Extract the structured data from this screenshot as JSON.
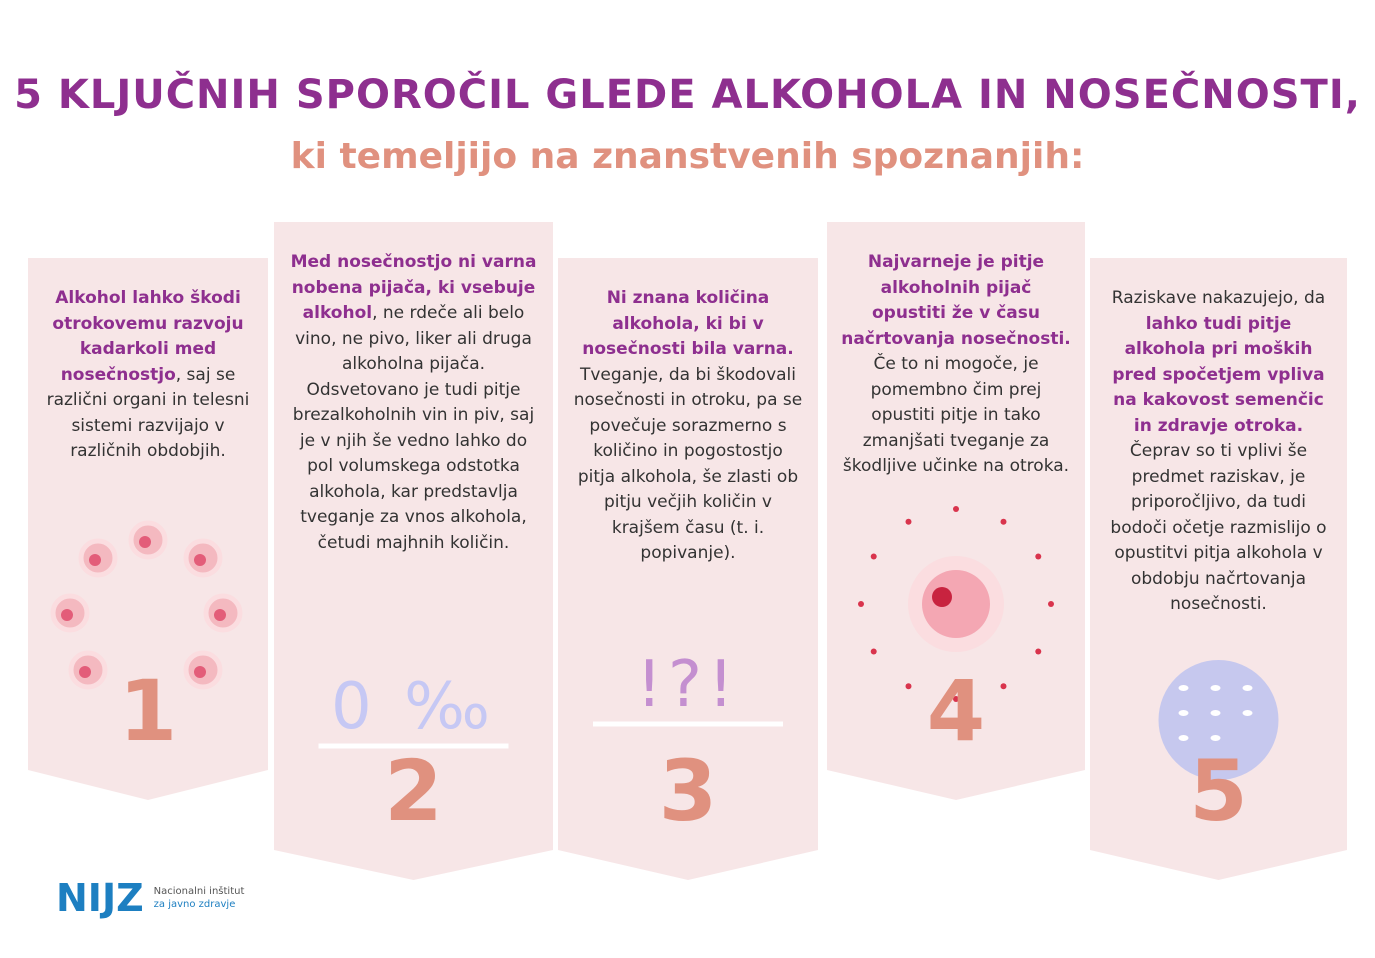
{
  "header": {
    "title": "5 KLJUČNIH SPOROČIL GLEDE ALKOHOLA IN NOSEČNOSTI,",
    "subtitle": "ki temeljijo na znanstvenih spoznanjih:"
  },
  "cards": [
    {
      "number": "1",
      "text": [
        {
          "text": "Alkohol lahko škodi otrokovemu razvoju kadarkoli med nosečnostjo",
          "emphasis": true
        },
        {
          "text": ", saj se različni organi in telesni sistemi razvijajo v različnih obdobjih.",
          "emphasis": false
        }
      ]
    },
    {
      "number": "2",
      "symbol": "0 ‰",
      "text": [
        {
          "text": "Med nosečnostjo ni varna nobena pijača, ki vsebuje alkohol",
          "emphasis": true
        },
        {
          "text": ", ne rdeče ali belo vino, ne pivo, liker ali druga alkoholna pijača. Odsvetovano je tudi pitje brezalkoholnih vin in piv, saj je v njih še vedno lahko do pol volumskega odstotka alkohola, kar predstavlja tveganje za vnos alkohola, četudi majhnih količin.",
          "emphasis": false
        }
      ]
    },
    {
      "number": "3",
      "symbol": "!?!",
      "text": [
        {
          "text": "Ni znana količina alkohola, ki bi v nosečnosti bila varna.",
          "emphasis": true
        },
        {
          "text": " Tveganje, da bi škodovali nosečnosti in otroku, pa se povečuje sorazmerno s količino in pogostostjo pitja alkohola, še zlasti ob pitju večjih količin v krajšem času (t. i. popivanje).",
          "emphasis": false
        }
      ]
    },
    {
      "number": "4",
      "text": [
        {
          "text": "Najvarneje je pitje alkoholnih pijač opustiti že v času načrtovanja nosečnosti.",
          "emphasis": true
        },
        {
          "text": " Če to ni mogoče, je pomembno čim prej opustiti pitje in tako zmanjšati tveganje za škodljive učinke na otroka.",
          "emphasis": false
        }
      ]
    },
    {
      "number": "5",
      "text": [
        {
          "text": "Raziskave nakazujejo, da ",
          "emphasis": false
        },
        {
          "text": "lahko tudi pitje alkohola pri moških pred spočetjem vpliva na kakovost semenčic in zdravje otroka.",
          "emphasis": true
        },
        {
          "text": " Čeprav so ti vplivi še predmet raziskav, je priporočljivo, da tudi bodoči očetje razmislijo o opustitvi pitja alkohola v obdobju načrtovanja nosečnosti.",
          "emphasis": false
        }
      ]
    }
  ],
  "logo": {
    "mark": "NIJZ",
    "line1": "Nacionalni inštitut",
    "line2": "za javno zdravje"
  }
}
